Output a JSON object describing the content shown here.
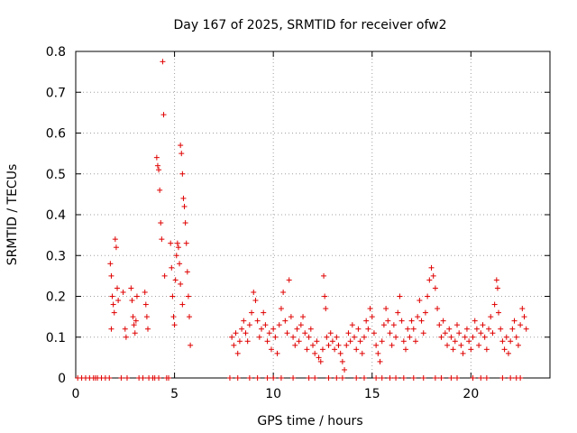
{
  "chart_data": {
    "type": "scatter",
    "title": "Day 167 of 2025, SRMTID for receiver ofw2",
    "xlabel": "GPS time / hours",
    "ylabel": "SRMTID / TECUs",
    "xlim": [
      0,
      24
    ],
    "ylim": [
      0,
      0.8
    ],
    "xticks": [
      "0",
      "5",
      "10",
      "15",
      "20"
    ],
    "yticks": [
      "0",
      "0.1",
      "0.2",
      "0.3",
      "0.4",
      "0.5",
      "0.6",
      "0.7",
      "0.8"
    ],
    "grid": true,
    "marker": "+",
    "series": [
      {
        "name": "ofw2",
        "color": "#e00000",
        "points": [
          [
            1.75,
            0.28
          ],
          [
            1.8,
            0.25
          ],
          [
            1.85,
            0.2
          ],
          [
            1.9,
            0.18
          ],
          [
            1.95,
            0.16
          ],
          [
            2.0,
            0.34
          ],
          [
            2.05,
            0.32
          ],
          [
            2.1,
            0.22
          ],
          [
            2.15,
            0.19
          ],
          [
            1.8,
            0.12
          ],
          [
            2.4,
            0.21
          ],
          [
            2.5,
            0.12
          ],
          [
            2.55,
            0.1
          ],
          [
            2.8,
            0.22
          ],
          [
            2.85,
            0.19
          ],
          [
            2.9,
            0.15
          ],
          [
            2.95,
            0.13
          ],
          [
            3.0,
            0.11
          ],
          [
            3.05,
            0.14
          ],
          [
            3.1,
            0.2
          ],
          [
            3.5,
            0.21
          ],
          [
            3.55,
            0.18
          ],
          [
            3.6,
            0.15
          ],
          [
            3.65,
            0.12
          ],
          [
            4.1,
            0.54
          ],
          [
            4.15,
            0.52
          ],
          [
            4.2,
            0.51
          ],
          [
            4.25,
            0.46
          ],
          [
            4.3,
            0.38
          ],
          [
            4.35,
            0.34
          ],
          [
            4.4,
            0.775
          ],
          [
            4.45,
            0.645
          ],
          [
            4.5,
            0.25
          ],
          [
            4.8,
            0.33
          ],
          [
            4.85,
            0.27
          ],
          [
            4.9,
            0.2
          ],
          [
            4.95,
            0.15
          ],
          [
            5.0,
            0.13
          ],
          [
            5.05,
            0.24
          ],
          [
            5.1,
            0.3
          ],
          [
            5.15,
            0.33
          ],
          [
            5.2,
            0.32
          ],
          [
            5.25,
            0.28
          ],
          [
            5.3,
            0.57
          ],
          [
            5.35,
            0.55
          ],
          [
            5.4,
            0.5
          ],
          [
            5.45,
            0.44
          ],
          [
            5.5,
            0.42
          ],
          [
            5.55,
            0.38
          ],
          [
            5.6,
            0.33
          ],
          [
            5.65,
            0.26
          ],
          [
            5.7,
            0.2
          ],
          [
            5.75,
            0.15
          ],
          [
            5.8,
            0.08
          ],
          [
            5.3,
            0.23
          ],
          [
            5.4,
            0.18
          ],
          [
            7.9,
            0.1
          ],
          [
            8.0,
            0.08
          ],
          [
            8.1,
            0.11
          ],
          [
            8.2,
            0.06
          ],
          [
            8.3,
            0.09
          ],
          [
            8.4,
            0.12
          ],
          [
            8.5,
            0.14
          ],
          [
            8.6,
            0.11
          ],
          [
            8.7,
            0.09
          ],
          [
            8.8,
            0.13
          ],
          [
            8.9,
            0.16
          ],
          [
            9.0,
            0.21
          ],
          [
            9.1,
            0.19
          ],
          [
            9.2,
            0.14
          ],
          [
            9.3,
            0.1
          ],
          [
            9.4,
            0.12
          ],
          [
            9.5,
            0.16
          ],
          [
            9.6,
            0.13
          ],
          [
            9.7,
            0.09
          ],
          [
            9.8,
            0.11
          ],
          [
            9.9,
            0.07
          ],
          [
            10.0,
            0.12
          ],
          [
            10.1,
            0.1
          ],
          [
            10.2,
            0.06
          ],
          [
            10.3,
            0.13
          ],
          [
            10.4,
            0.17
          ],
          [
            10.5,
            0.21
          ],
          [
            10.6,
            0.14
          ],
          [
            10.7,
            0.11
          ],
          [
            10.8,
            0.24
          ],
          [
            10.9,
            0.15
          ],
          [
            11.0,
            0.1
          ],
          [
            11.1,
            0.08
          ],
          [
            11.2,
            0.12
          ],
          [
            11.3,
            0.09
          ],
          [
            11.4,
            0.13
          ],
          [
            11.5,
            0.15
          ],
          [
            11.6,
            0.11
          ],
          [
            11.7,
            0.07
          ],
          [
            11.8,
            0.1
          ],
          [
            11.9,
            0.12
          ],
          [
            12.0,
            0.08
          ],
          [
            12.1,
            0.06
          ],
          [
            12.2,
            0.09
          ],
          [
            12.3,
            0.05
          ],
          [
            12.4,
            0.04
          ],
          [
            12.5,
            0.07
          ],
          [
            12.55,
            0.25
          ],
          [
            12.6,
            0.2
          ],
          [
            12.65,
            0.17
          ],
          [
            12.7,
            0.1
          ],
          [
            12.8,
            0.08
          ],
          [
            12.9,
            0.11
          ],
          [
            13.0,
            0.09
          ],
          [
            13.1,
            0.07
          ],
          [
            13.2,
            0.1
          ],
          [
            13.3,
            0.08
          ],
          [
            13.4,
            0.06
          ],
          [
            13.5,
            0.04
          ],
          [
            13.6,
            0.02
          ],
          [
            13.7,
            0.08
          ],
          [
            13.8,
            0.11
          ],
          [
            13.9,
            0.09
          ],
          [
            14.0,
            0.13
          ],
          [
            14.1,
            0.1
          ],
          [
            14.2,
            0.07
          ],
          [
            14.3,
            0.12
          ],
          [
            14.4,
            0.09
          ],
          [
            14.5,
            0.06
          ],
          [
            14.6,
            0.1
          ],
          [
            14.7,
            0.14
          ],
          [
            14.8,
            0.12
          ],
          [
            14.9,
            0.17
          ],
          [
            15.0,
            0.15
          ],
          [
            15.1,
            0.11
          ],
          [
            15.2,
            0.08
          ],
          [
            15.3,
            0.06
          ],
          [
            15.4,
            0.04
          ],
          [
            15.5,
            0.09
          ],
          [
            15.6,
            0.13
          ],
          [
            15.7,
            0.17
          ],
          [
            15.8,
            0.14
          ],
          [
            15.9,
            0.11
          ],
          [
            16.0,
            0.08
          ],
          [
            16.1,
            0.13
          ],
          [
            16.2,
            0.1
          ],
          [
            16.3,
            0.16
          ],
          [
            16.4,
            0.2
          ],
          [
            16.5,
            0.14
          ],
          [
            16.6,
            0.09
          ],
          [
            16.7,
            0.07
          ],
          [
            16.8,
            0.12
          ],
          [
            16.9,
            0.1
          ],
          [
            17.0,
            0.14
          ],
          [
            17.1,
            0.12
          ],
          [
            17.2,
            0.09
          ],
          [
            17.3,
            0.15
          ],
          [
            17.4,
            0.19
          ],
          [
            17.5,
            0.14
          ],
          [
            17.6,
            0.11
          ],
          [
            17.7,
            0.16
          ],
          [
            17.8,
            0.2
          ],
          [
            17.9,
            0.24
          ],
          [
            18.0,
            0.27
          ],
          [
            18.1,
            0.25
          ],
          [
            18.2,
            0.22
          ],
          [
            18.3,
            0.17
          ],
          [
            18.4,
            0.13
          ],
          [
            18.5,
            0.1
          ],
          [
            18.6,
            0.14
          ],
          [
            18.7,
            0.11
          ],
          [
            18.8,
            0.08
          ],
          [
            18.9,
            0.12
          ],
          [
            19.0,
            0.1
          ],
          [
            19.1,
            0.07
          ],
          [
            19.2,
            0.09
          ],
          [
            19.3,
            0.13
          ],
          [
            19.4,
            0.11
          ],
          [
            19.5,
            0.08
          ],
          [
            19.6,
            0.06
          ],
          [
            19.7,
            0.1
          ],
          [
            19.8,
            0.12
          ],
          [
            19.9,
            0.09
          ],
          [
            20.0,
            0.07
          ],
          [
            20.1,
            0.1
          ],
          [
            20.2,
            0.14
          ],
          [
            20.3,
            0.12
          ],
          [
            20.4,
            0.08
          ],
          [
            20.5,
            0.11
          ],
          [
            20.6,
            0.13
          ],
          [
            20.7,
            0.1
          ],
          [
            20.8,
            0.07
          ],
          [
            20.9,
            0.12
          ],
          [
            21.0,
            0.15
          ],
          [
            21.1,
            0.11
          ],
          [
            21.2,
            0.18
          ],
          [
            21.3,
            0.24
          ],
          [
            21.35,
            0.22
          ],
          [
            21.4,
            0.16
          ],
          [
            21.5,
            0.12
          ],
          [
            21.6,
            0.09
          ],
          [
            21.7,
            0.07
          ],
          [
            21.8,
            0.1
          ],
          [
            21.9,
            0.06
          ],
          [
            22.0,
            0.09
          ],
          [
            22.1,
            0.12
          ],
          [
            22.2,
            0.14
          ],
          [
            22.3,
            0.1
          ],
          [
            22.4,
            0.08
          ],
          [
            22.5,
            0.13
          ],
          [
            22.6,
            0.17
          ],
          [
            22.7,
            0.15
          ],
          [
            22.8,
            0.12
          ]
        ],
        "zero_points_x": [
          0.1,
          0.3,
          0.5,
          0.7,
          0.9,
          1.0,
          1.1,
          1.3,
          1.5,
          1.7,
          2.3,
          2.6,
          3.2,
          3.4,
          3.7,
          3.9,
          4.0,
          4.2,
          4.6,
          4.7,
          7.8,
          8.2,
          8.8,
          9.2,
          9.7,
          10.0,
          10.4,
          11.0,
          11.8,
          12.1,
          12.8,
          13.2,
          13.5,
          14.2,
          14.6,
          15.2,
          15.5,
          15.9,
          16.2,
          16.6,
          17.1,
          17.6,
          18.2,
          18.5,
          19.0,
          19.3,
          20.1,
          20.5,
          20.8,
          21.6,
          22.0,
          22.3,
          22.5
        ]
      }
    ]
  }
}
